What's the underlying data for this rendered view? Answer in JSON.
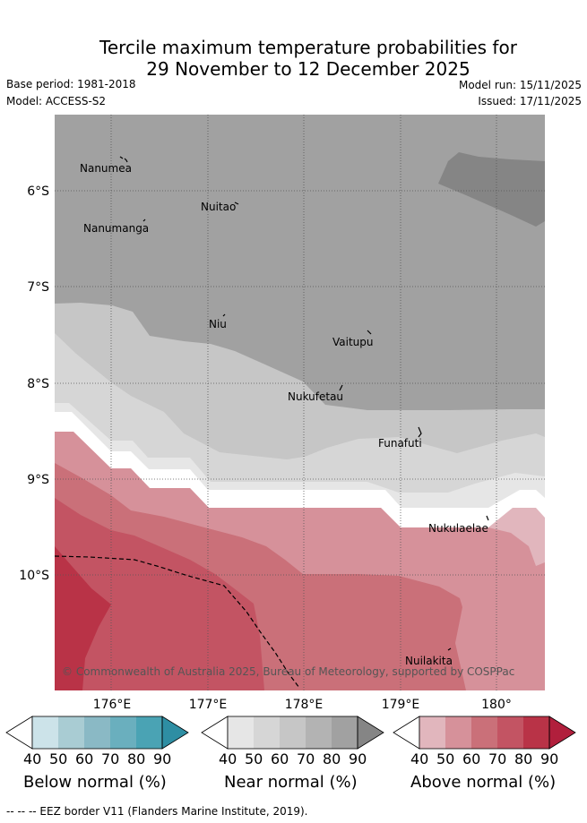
{
  "title": {
    "line1": "Tercile maximum temperature probabilities for",
    "line2": "29 November to 12 December 2025"
  },
  "header": {
    "base_period": "Base period: 1981-2018",
    "model": "Model: ACCESS-S2",
    "model_run": "Model run: 15/11/2025",
    "issued": "Issued: 17/11/2025"
  },
  "map": {
    "longitude_ticks": [
      "176°E",
      "177°E",
      "178°E",
      "179°E",
      "180°"
    ],
    "latitude_ticks": [
      "6°S",
      "7°S",
      "8°S",
      "9°S",
      "10°S"
    ],
    "places": [
      {
        "name": "Nanumea"
      },
      {
        "name": "Nuitao"
      },
      {
        "name": "Nanumanga"
      },
      {
        "name": "Niu"
      },
      {
        "name": "Vaitupu"
      },
      {
        "name": "Nukufetau"
      },
      {
        "name": "Funafuti"
      },
      {
        "name": "Nukulaelae"
      },
      {
        "name": "Nuilakita"
      }
    ],
    "copyright": "© Commonwealth of Australia 2025, Bureau of Meteorology, supported by COSPPac"
  },
  "colorbars": {
    "ticks": [
      "40",
      "50",
      "60",
      "70",
      "80",
      "90"
    ],
    "below": {
      "title": "Below normal (%)",
      "colors": [
        "#ffffff",
        "#cce3e9",
        "#a9ccd3",
        "#8ab9c5",
        "#6aafbe",
        "#4aa3b4",
        "#2e8ea3"
      ]
    },
    "near": {
      "title": "Near normal (%)",
      "colors": [
        "#ffffff",
        "#e6e6e6",
        "#d6d6d6",
        "#c6c6c6",
        "#b3b3b3",
        "#a1a1a1",
        "#858585"
      ]
    },
    "above": {
      "title": "Above normal (%)",
      "colors": [
        "#ffffff",
        "#e1b6bd",
        "#d6919a",
        "#ca7079",
        "#c35463",
        "#b93347",
        "#b11f3c"
      ]
    }
  },
  "footnote": "--  --  -- EEZ border V11 (Flanders Marine Institute, 2019)."
}
